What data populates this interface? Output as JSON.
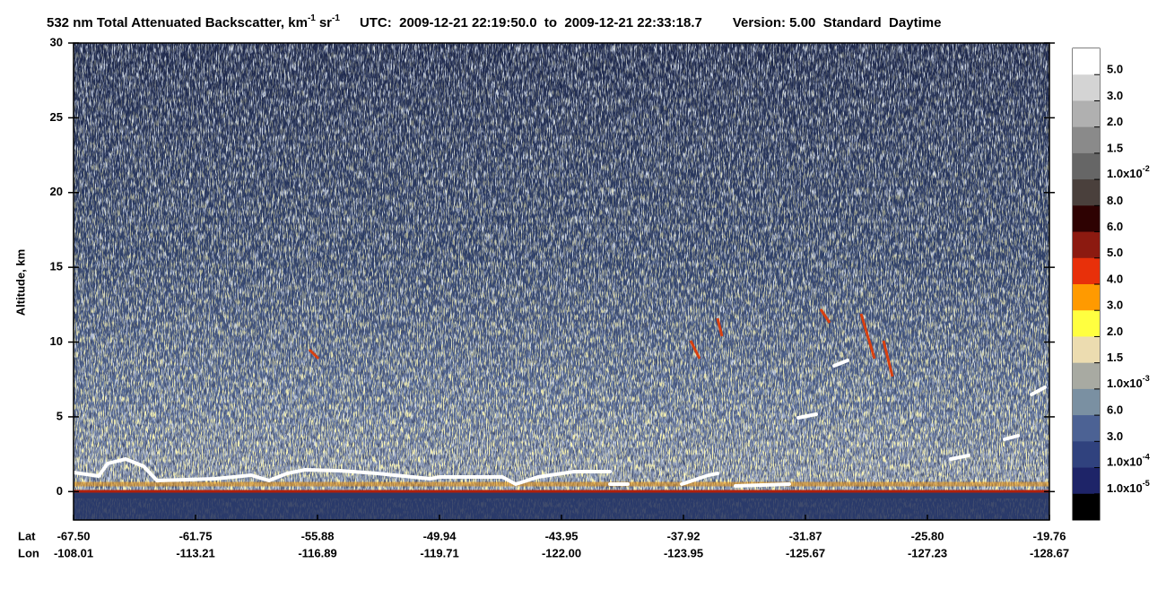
{
  "chart_data": {
    "type": "backscatter-profile",
    "title": {
      "text": "532 nm Total Attenuated Backscatter, km",
      "exp1": "-1",
      "unit2": "sr",
      "exp2": "-1"
    },
    "utc": "UTC:  2009-12-21 22:19:50.0  to  2009-12-21 22:33:18.7",
    "version": "Version: 5.00  Standard  Daytime",
    "ylabel": "Altitude, km",
    "ylim": [
      -1.9,
      30
    ],
    "yticks": [
      0,
      5,
      10,
      15,
      20,
      25,
      30
    ],
    "lat_label": "Lat",
    "lon_label": "Lon",
    "x_ticks": [
      {
        "lat": "-67.50",
        "lon": "-108.01"
      },
      {
        "lat": "-61.75",
        "lon": "-113.21"
      },
      {
        "lat": "-55.88",
        "lon": "-116.89"
      },
      {
        "lat": "-49.94",
        "lon": "-119.71"
      },
      {
        "lat": "-43.95",
        "lon": "-122.00"
      },
      {
        "lat": "-37.92",
        "lon": "-123.95"
      },
      {
        "lat": "-31.87",
        "lon": "-125.67"
      },
      {
        "lat": "-25.80",
        "lon": "-127.23"
      },
      {
        "lat": "-19.76",
        "lon": "-128.67"
      }
    ],
    "colorbar": {
      "colors": [
        "#ffffff",
        "#d4d4d4",
        "#b0b0b0",
        "#8a8a8a",
        "#666666",
        "#4a403c",
        "#2e0202",
        "#8c1a10",
        "#e8300a",
        "#ff9a00",
        "#ffff40",
        "#ecdcb0",
        "#a8aaa2",
        "#7a90a2",
        "#4c6294",
        "#30427e",
        "#1e2468",
        "#000000"
      ],
      "labels": [
        "5.0",
        "3.0",
        "2.0",
        "1.5",
        {
          "text": "1.0x10",
          "exp": "-2"
        },
        "8.0",
        "6.0",
        "5.0",
        "4.0",
        "3.0",
        "2.0",
        "1.5",
        {
          "text": "1.0x10",
          "exp": "-3"
        },
        "6.0",
        "3.0",
        {
          "text": "1.0x10",
          "exp": "-4"
        },
        {
          "text": "1.0x10",
          "exp": "-5"
        }
      ]
    }
  }
}
